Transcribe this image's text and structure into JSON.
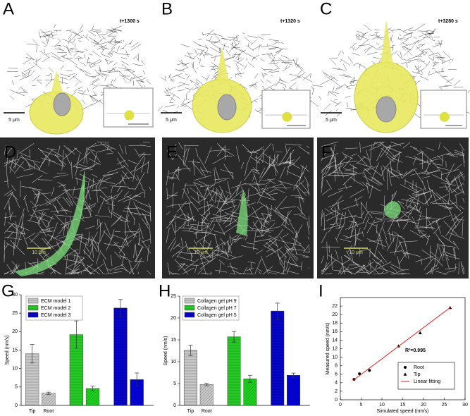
{
  "panels": [
    {
      "label": "A",
      "time": "t+1300 s",
      "scale": "5 μm"
    },
    {
      "label": "B",
      "time": "t+1320 s",
      "scale": "5 μm"
    },
    {
      "label": "C",
      "time": "t+3280 s",
      "scale": "5 μm"
    },
    {
      "label": "D",
      "scale": "10 μm"
    },
    {
      "label": "E",
      "scale": "10 μm"
    },
    {
      "label": "F",
      "scale": "10 μm"
    }
  ],
  "chart_data": [
    {
      "type": "bar",
      "panel": "G",
      "y_label": "Speed (nm/s)",
      "categories": [
        "Tip",
        "Root"
      ],
      "series": [
        {
          "name": "ECM model 1",
          "color": "#c8c8c8",
          "values": [
            14,
            3.3
          ],
          "errors": [
            2.5,
            0.3
          ]
        },
        {
          "name": "ECM model 2",
          "color": "#22cc22",
          "values": [
            19.2,
            4.6
          ],
          "errors": [
            3.7,
            0.6
          ]
        },
        {
          "name": "ECM model 3",
          "color": "#0000cc",
          "values": [
            26.4,
            7
          ],
          "errors": [
            2.3,
            1.8
          ]
        }
      ],
      "ylim": [
        0,
        30
      ],
      "yticks": [
        0,
        5,
        10,
        15,
        20,
        25,
        30
      ]
    },
    {
      "type": "bar",
      "panel": "H",
      "y_label": "Speed (nm/s)",
      "categories": [
        "Tip",
        "Root"
      ],
      "series": [
        {
          "name": "Collagen gel pH 9",
          "color": "#c8c8c8",
          "values": [
            12.6,
            4.8
          ],
          "errors": [
            1.2,
            0.3
          ]
        },
        {
          "name": "Collagen gel pH 7",
          "color": "#22cc22",
          "values": [
            15.7,
            6.1
          ],
          "errors": [
            1.2,
            0.8
          ]
        },
        {
          "name": "Collagen gel pH 5",
          "color": "#0000cc",
          "values": [
            21.6,
            6.9
          ],
          "errors": [
            1.8,
            0.5
          ]
        }
      ],
      "ylim": [
        0,
        25
      ],
      "yticks": [
        0,
        5,
        10,
        15,
        20,
        25
      ]
    },
    {
      "type": "scatter",
      "panel": "I",
      "x_label": "Simulated speed (nm/s)",
      "y_label": "Measured speed (nm/s)",
      "annotation": "R²=0.995",
      "series": [
        {
          "name": "Root",
          "marker": "circle",
          "color": "#000000",
          "x": [
            3.3,
            4.6,
            7
          ],
          "values": [
            4.8,
            6.1,
            6.9
          ]
        },
        {
          "name": "Tip",
          "marker": "triangle",
          "color": "#000000",
          "x": [
            14,
            19.2,
            26.4
          ],
          "values": [
            12.6,
            15.7,
            21.6
          ]
        },
        {
          "name": "Linear fitting",
          "marker": "line",
          "color": "#e02020",
          "x": [
            3,
            26.5
          ],
          "values": [
            4.5,
            21.7
          ]
        }
      ],
      "xlim": [
        0,
        30
      ],
      "xticks": [
        0,
        5,
        10,
        15,
        20,
        25,
        30
      ],
      "ylim": [
        0,
        24
      ],
      "yticks": [
        0,
        2,
        4,
        6,
        8,
        10,
        12,
        14,
        16,
        18,
        20,
        22
      ]
    }
  ]
}
